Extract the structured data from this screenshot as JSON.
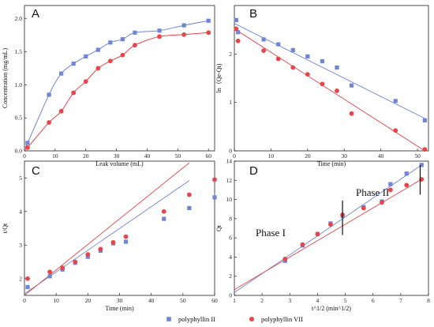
{
  "chart_data": [
    {
      "panel": "A",
      "type": "scatter",
      "xlabel": "Leak volume (mL)",
      "ylabel": "Concentration (mg/mL)",
      "xlim": [
        0,
        62
      ],
      "ylim": [
        0,
        2.2
      ],
      "xticks": [
        "0",
        "10",
        "20",
        "30",
        "40",
        "50",
        "60"
      ],
      "yticks": [
        "0.0",
        "0.5",
        "1.0",
        "1.5",
        "2.0"
      ],
      "series": [
        {
          "name": "polyphyllin II",
          "color": "#6f86d8",
          "marker": "square",
          "x": [
            1,
            8,
            12,
            16,
            20,
            24,
            28,
            32,
            36,
            44,
            52,
            60
          ],
          "y": [
            0.12,
            0.85,
            1.17,
            1.32,
            1.43,
            1.53,
            1.64,
            1.69,
            1.79,
            1.82,
            1.9,
            1.97
          ]
        },
        {
          "name": "polyphyllin VII",
          "color": "#e8444a",
          "marker": "circle",
          "x": [
            1,
            8,
            12,
            16,
            20,
            24,
            28,
            32,
            36,
            44,
            52,
            60
          ],
          "y": [
            0.05,
            0.43,
            0.6,
            0.88,
            1.05,
            1.25,
            1.36,
            1.45,
            1.6,
            1.73,
            1.76,
            1.79
          ]
        }
      ]
    },
    {
      "panel": "B",
      "type": "scatter",
      "xlabel": "Time (min)",
      "ylabel": "ln（Qe-Qt)",
      "xlim": [
        0,
        53
      ],
      "ylim": [
        0,
        3
      ],
      "xticks": [
        "0",
        "10",
        "20",
        "30",
        "40",
        "50"
      ],
      "yticks": [
        "0",
        "1",
        "2"
      ],
      "series": [
        {
          "name": "polyphyllin II",
          "color": "#6f86d8",
          "marker": "square",
          "x": [
            0.5,
            1,
            8,
            12,
            16,
            20,
            24,
            28,
            32,
            44,
            52
          ],
          "y": [
            2.7,
            2.45,
            2.3,
            2.2,
            2.08,
            1.95,
            1.85,
            1.72,
            1.35,
            1.03,
            0.63
          ],
          "fit": [
            [
              0,
              2.63
            ],
            [
              52,
              0.67
            ]
          ]
        },
        {
          "name": "polyphyllin VII",
          "color": "#e8444a",
          "marker": "circle",
          "x": [
            0.5,
            1,
            8,
            12,
            16,
            20,
            24,
            28,
            32,
            44,
            52
          ],
          "y": [
            2.52,
            2.27,
            2.07,
            1.9,
            1.72,
            1.58,
            1.38,
            1.24,
            0.77,
            0.42,
            0.03
          ],
          "fit": [
            [
              0,
              2.52
            ],
            [
              52,
              0.0
            ]
          ]
        }
      ]
    },
    {
      "panel": "C",
      "type": "scatter",
      "xlabel": "Time (min)",
      "ylabel": "t/Qt",
      "xlim": [
        0,
        60
      ],
      "ylim": [
        1.5,
        5.5
      ],
      "xticks": [
        "0",
        "10",
        "20",
        "30",
        "40",
        "50",
        "60"
      ],
      "yticks": [
        "2",
        "3",
        "4",
        "5"
      ],
      "series": [
        {
          "name": "polyphyllin II",
          "color": "#6f86d8",
          "marker": "square",
          "x": [
            1,
            8,
            12,
            16,
            20,
            24,
            28,
            32,
            44,
            52,
            60
          ],
          "y": [
            1.75,
            2.07,
            2.27,
            2.47,
            2.65,
            2.83,
            3.05,
            3.1,
            3.78,
            4.1,
            4.42
          ],
          "fit": [
            [
              0,
              1.55
            ],
            [
              52,
              4.92
            ]
          ]
        },
        {
          "name": "polyphyllin VII",
          "color": "#e8444a",
          "marker": "circle",
          "x": [
            1,
            8,
            12,
            16,
            20,
            24,
            28,
            32,
            44,
            52,
            60
          ],
          "y": [
            2.0,
            2.2,
            2.32,
            2.5,
            2.72,
            2.88,
            3.08,
            3.25,
            4.0,
            4.5,
            4.95
          ],
          "fit": [
            [
              0,
              1.5
            ],
            [
              52,
              5.45
            ]
          ]
        }
      ]
    },
    {
      "panel": "D",
      "type": "scatter",
      "xlabel": "t^1/2  (min^1/2)",
      "ylabel": "Qt",
      "xlim": [
        1,
        8
      ],
      "ylim": [
        0,
        14
      ],
      "xticks": [
        "1",
        "2",
        "3",
        "4",
        "5",
        "6",
        "7",
        "8"
      ],
      "yticks": [
        "0",
        "2",
        "4",
        "6",
        "8",
        "10",
        "12",
        "14"
      ],
      "annotations": [
        "Phase I",
        "Phase II"
      ],
      "dividers": [
        {
          "x": 4.9,
          "y0": 6.3,
          "y1": 9.9
        },
        {
          "x": 7.7,
          "y0": 10.5,
          "y1": 13.6
        }
      ],
      "series": [
        {
          "name": "polyphyllin II",
          "color": "#6f86d8",
          "marker": "square",
          "x": [
            2.83,
            3.46,
            4.0,
            4.47,
            4.9,
            5.66,
            6.32,
            6.63,
            7.21,
            7.75
          ],
          "y": [
            3.6,
            5.2,
            6.4,
            7.5,
            8.3,
            9.2,
            9.8,
            11.6,
            12.7,
            13.6
          ],
          "fit": [
            [
              1,
              0.3
            ],
            [
              7.75,
              13.6
            ]
          ]
        },
        {
          "name": "polyphyllin VII",
          "color": "#e8444a",
          "marker": "circle",
          "x": [
            2.83,
            3.46,
            4.0,
            4.47,
            4.9,
            5.66,
            6.32,
            6.63,
            7.21,
            7.75
          ],
          "y": [
            3.8,
            5.3,
            6.4,
            7.4,
            8.4,
            9.1,
            9.7,
            11.0,
            11.5,
            12.1
          ],
          "fit": [
            [
              1,
              0.6
            ],
            [
              7.75,
              12.1
            ]
          ]
        }
      ]
    }
  ],
  "legend": {
    "items": [
      {
        "label": "polyphyllin II",
        "color": "#6f86d8",
        "marker": "square"
      },
      {
        "label": "polyphyllin VII",
        "color": "#e8444a",
        "marker": "circle"
      }
    ]
  }
}
